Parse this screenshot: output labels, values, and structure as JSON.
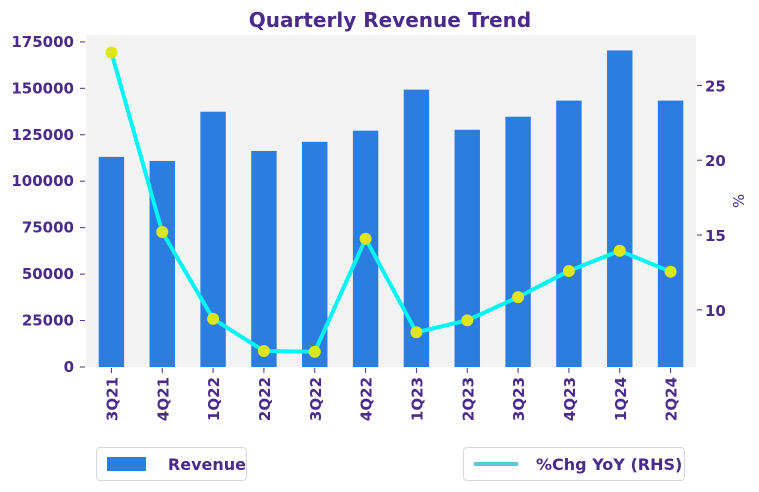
{
  "chart_data": {
    "type": "bar+line",
    "title": "Quarterly Revenue Trend",
    "categories": [
      "3Q21",
      "4Q21",
      "1Q22",
      "2Q22",
      "3Q22",
      "4Q22",
      "1Q23",
      "2Q23",
      "3Q23",
      "4Q23",
      "1Q24",
      "2Q24"
    ],
    "series": [
      {
        "name": "Revenue",
        "type": "bar",
        "axis": "left",
        "color": "#2b7de0",
        "values": [
          113100,
          110900,
          137400,
          116300,
          121200,
          127200,
          149300,
          127700,
          134700,
          143400,
          170400,
          143400
        ]
      },
      {
        "name": "%Chg YoY (RHS)",
        "type": "line",
        "axis": "right",
        "color": "#00f5f5",
        "legend_color": "#5cc8d8",
        "marker_color": "#dde619",
        "values": [
          27.2,
          15.2,
          9.4,
          7.25,
          7.2,
          14.75,
          8.5,
          9.3,
          10.85,
          12.6,
          13.95,
          12.55
        ]
      }
    ],
    "xlabel": "",
    "ylabel_left": "",
    "ylabel_right": "%",
    "ylim_left": [
      0,
      178700
    ],
    "yticks_left": [
      0,
      25000,
      50000,
      75000,
      100000,
      125000,
      150000,
      175000
    ],
    "ylim_right": [
      6.18,
      28.37
    ],
    "yticks_right": [
      10,
      15,
      20,
      25
    ],
    "grid": false,
    "background": "#f3f3f3",
    "text_color": "#4a2a8a",
    "legend": [
      {
        "label": "Revenue",
        "kind": "bar",
        "placement": "bottom-left"
      },
      {
        "label": "%Chg YoY (RHS)",
        "kind": "line",
        "placement": "bottom-right"
      }
    ]
  }
}
